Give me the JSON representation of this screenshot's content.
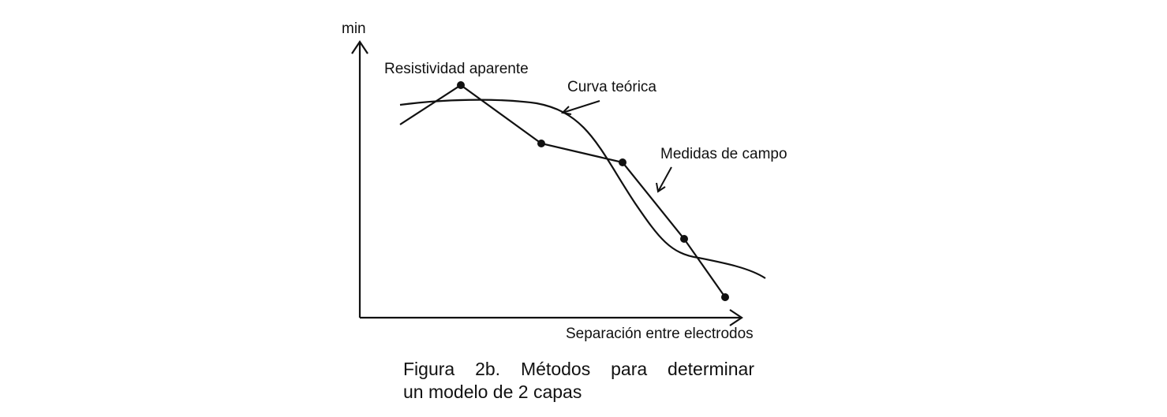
{
  "labels": {
    "y_axis": "min",
    "x_axis": "Separación entre electrodos",
    "apparent": "Resistividad aparente",
    "theoretical": "Curva teórica",
    "field": "Medidas de campo"
  },
  "caption": {
    "line1": "Figura 2b. Métodos para determinar",
    "line2": "un modelo de 2 capas"
  },
  "colors": {
    "ink": "#111111",
    "background": "#ffffff"
  },
  "chart_data": {
    "type": "line",
    "xlabel": "Separación entre electrodos",
    "ylabel": "min",
    "series": [
      {
        "name": "Curva teórica",
        "kind": "smooth-curve"
      },
      {
        "name": "Medidas de campo",
        "kind": "points-connected",
        "points": 6
      }
    ]
  }
}
